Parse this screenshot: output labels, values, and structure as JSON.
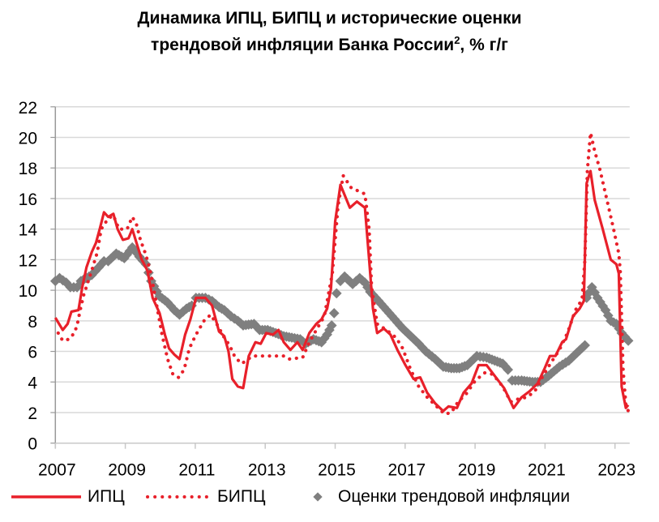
{
  "chart_data": {
    "type": "line",
    "title_line1": "Динамика ИПЦ, БИПЦ и исторические оценки",
    "title_line2": "трендовой инфляции Банка России",
    "title_sup": "2",
    "title_suffix": ", % г/г",
    "xlabel": "",
    "ylabel": "",
    "xlim": [
      2007,
      2023.42
    ],
    "ylim": [
      0,
      22
    ],
    "y_ticks": [
      "0",
      "2",
      "4",
      "6",
      "8",
      "10",
      "12",
      "14",
      "16",
      "18",
      "20",
      "22"
    ],
    "x_ticks": [
      "2007",
      "2009",
      "2011",
      "2013",
      "2015",
      "2017",
      "2019",
      "2021",
      "2023"
    ],
    "grid": "horizontal",
    "legend_placement": "bottom",
    "colors": {
      "cpi": "#e8202a",
      "core": "#e8202a",
      "trend": "#7f7f7f",
      "grid": "#d9d9d9"
    },
    "series": [
      {
        "name": "ИПЦ",
        "style": "solid",
        "points": [
          [
            2007.0,
            8.2
          ],
          [
            2007.21,
            7.4
          ],
          [
            2007.35,
            7.8
          ],
          [
            2007.46,
            8.6
          ],
          [
            2007.66,
            8.7
          ],
          [
            2007.77,
            10.2
          ],
          [
            2007.89,
            11.5
          ],
          [
            2008.04,
            12.5
          ],
          [
            2008.16,
            13.1
          ],
          [
            2008.28,
            14.1
          ],
          [
            2008.39,
            15.1
          ],
          [
            2008.51,
            14.8
          ],
          [
            2008.66,
            15.0
          ],
          [
            2008.78,
            14.0
          ],
          [
            2008.93,
            13.3
          ],
          [
            2009.09,
            13.4
          ],
          [
            2009.2,
            14.0
          ],
          [
            2009.32,
            13.1
          ],
          [
            2009.47,
            12.0
          ],
          [
            2009.63,
            11.3
          ],
          [
            2009.78,
            9.5
          ],
          [
            2009.98,
            8.5
          ],
          [
            2010.13,
            7.1
          ],
          [
            2010.25,
            6.2
          ],
          [
            2010.4,
            5.8
          ],
          [
            2010.55,
            5.5
          ],
          [
            2010.71,
            7.1
          ],
          [
            2010.86,
            8.1
          ],
          [
            2011.02,
            9.5
          ],
          [
            2011.29,
            9.5
          ],
          [
            2011.48,
            9.0
          ],
          [
            2011.68,
            7.3
          ],
          [
            2011.83,
            7.0
          ],
          [
            2011.95,
            6.0
          ],
          [
            2012.06,
            4.2
          ],
          [
            2012.22,
            3.7
          ],
          [
            2012.37,
            3.6
          ],
          [
            2012.53,
            5.7
          ],
          [
            2012.72,
            6.6
          ],
          [
            2012.87,
            6.5
          ],
          [
            2013.03,
            7.2
          ],
          [
            2013.22,
            7.1
          ],
          [
            2013.38,
            7.4
          ],
          [
            2013.53,
            6.6
          ],
          [
            2013.72,
            6.1
          ],
          [
            2013.92,
            6.6
          ],
          [
            2014.07,
            6.1
          ],
          [
            2014.26,
            7.2
          ],
          [
            2014.46,
            7.8
          ],
          [
            2014.61,
            8.1
          ],
          [
            2014.77,
            8.8
          ],
          [
            2014.88,
            10.1
          ],
          [
            2015.0,
            14.5
          ],
          [
            2015.15,
            16.9
          ],
          [
            2015.42,
            15.4
          ],
          [
            2015.62,
            15.8
          ],
          [
            2015.85,
            15.4
          ],
          [
            2015.97,
            12.0
          ],
          [
            2016.08,
            8.8
          ],
          [
            2016.2,
            7.2
          ],
          [
            2016.39,
            7.5
          ],
          [
            2016.58,
            7.1
          ],
          [
            2016.78,
            6.1
          ],
          [
            2017.01,
            5.1
          ],
          [
            2017.24,
            4.2
          ],
          [
            2017.43,
            4.3
          ],
          [
            2017.63,
            3.3
          ],
          [
            2017.86,
            2.6
          ],
          [
            2018.09,
            2.1
          ],
          [
            2018.24,
            2.4
          ],
          [
            2018.48,
            2.3
          ],
          [
            2018.67,
            3.3
          ],
          [
            2018.9,
            3.9
          ],
          [
            2019.1,
            5.1
          ],
          [
            2019.33,
            5.1
          ],
          [
            2019.56,
            4.4
          ],
          [
            2019.83,
            3.6
          ],
          [
            2020.1,
            2.3
          ],
          [
            2020.33,
            3.0
          ],
          [
            2020.56,
            3.4
          ],
          [
            2020.79,
            3.9
          ],
          [
            2020.99,
            4.9
          ],
          [
            2021.14,
            5.7
          ],
          [
            2021.3,
            5.7
          ],
          [
            2021.49,
            6.6
          ],
          [
            2021.6,
            6.8
          ],
          [
            2021.8,
            8.3
          ],
          [
            2021.99,
            8.8
          ],
          [
            2022.11,
            9.3
          ],
          [
            2022.19,
            17.0
          ],
          [
            2022.3,
            17.8
          ],
          [
            2022.42,
            15.9
          ],
          [
            2022.65,
            14.0
          ],
          [
            2022.88,
            12.0
          ],
          [
            2023.04,
            11.7
          ],
          [
            2023.11,
            11.1
          ],
          [
            2023.19,
            3.7
          ],
          [
            2023.31,
            2.3
          ],
          [
            2023.38,
            2.5
          ]
        ]
      },
      {
        "name": "БИПЦ",
        "style": "dotted",
        "points": [
          [
            2007.08,
            7.2
          ],
          [
            2007.21,
            6.7
          ],
          [
            2007.39,
            6.8
          ],
          [
            2007.54,
            7.2
          ],
          [
            2007.62,
            7.7
          ],
          [
            2007.71,
            8.7
          ],
          [
            2007.81,
            9.7
          ],
          [
            2008.04,
            11.3
          ],
          [
            2008.2,
            12.5
          ],
          [
            2008.31,
            14.0
          ],
          [
            2008.51,
            14.7
          ],
          [
            2008.66,
            14.9
          ],
          [
            2008.82,
            14.0
          ],
          [
            2009.05,
            14.0
          ],
          [
            2009.2,
            14.8
          ],
          [
            2009.32,
            14.3
          ],
          [
            2009.43,
            13.3
          ],
          [
            2009.59,
            12.3
          ],
          [
            2009.74,
            11.0
          ],
          [
            2009.9,
            9.0
          ],
          [
            2010.05,
            7.1
          ],
          [
            2010.21,
            5.5
          ],
          [
            2010.36,
            4.5
          ],
          [
            2010.52,
            4.3
          ],
          [
            2010.68,
            4.8
          ],
          [
            2010.83,
            6.2
          ],
          [
            2011.02,
            7.1
          ],
          [
            2011.25,
            8.0
          ],
          [
            2011.44,
            8.4
          ],
          [
            2011.64,
            7.7
          ],
          [
            2011.83,
            6.9
          ],
          [
            2011.98,
            6.4
          ],
          [
            2012.14,
            5.6
          ],
          [
            2012.33,
            5.2
          ],
          [
            2012.64,
            5.7
          ],
          [
            2013.14,
            5.7
          ],
          [
            2013.53,
            5.7
          ],
          [
            2013.68,
            5.5
          ],
          [
            2014.07,
            5.6
          ],
          [
            2014.26,
            6.6
          ],
          [
            2014.46,
            7.4
          ],
          [
            2014.69,
            8.3
          ],
          [
            2014.92,
            11.1
          ],
          [
            2015.08,
            15.5
          ],
          [
            2015.23,
            17.5
          ],
          [
            2015.46,
            16.7
          ],
          [
            2015.85,
            16.3
          ],
          [
            2015.97,
            14.0
          ],
          [
            2016.04,
            10.2
          ],
          [
            2016.2,
            7.8
          ],
          [
            2016.47,
            7.4
          ],
          [
            2016.74,
            6.9
          ],
          [
            2016.93,
            6.2
          ],
          [
            2017.16,
            4.8
          ],
          [
            2017.39,
            3.7
          ],
          [
            2017.63,
            3.0
          ],
          [
            2017.9,
            2.4
          ],
          [
            2018.13,
            1.9
          ],
          [
            2018.32,
            2.0
          ],
          [
            2018.51,
            2.7
          ],
          [
            2018.74,
            3.2
          ],
          [
            2019.01,
            4.1
          ],
          [
            2019.28,
            4.6
          ],
          [
            2019.51,
            4.5
          ],
          [
            2019.79,
            3.7
          ],
          [
            2020.02,
            2.7
          ],
          [
            2020.25,
            2.9
          ],
          [
            2020.48,
            3.0
          ],
          [
            2020.71,
            3.4
          ],
          [
            2020.94,
            4.4
          ],
          [
            2021.18,
            5.3
          ],
          [
            2021.41,
            6.1
          ],
          [
            2021.64,
            7.2
          ],
          [
            2021.87,
            8.7
          ],
          [
            2022.06,
            9.4
          ],
          [
            2022.14,
            12.0
          ],
          [
            2022.21,
            17.8
          ],
          [
            2022.3,
            20.3
          ],
          [
            2022.42,
            19.1
          ],
          [
            2022.57,
            17.9
          ],
          [
            2022.77,
            15.9
          ],
          [
            2022.96,
            14.0
          ],
          [
            2023.11,
            12.4
          ],
          [
            2023.15,
            11.3
          ],
          [
            2023.23,
            4.9
          ],
          [
            2023.31,
            2.5
          ],
          [
            2023.38,
            2.1
          ]
        ]
      },
      {
        "name": "Оценки трендовой инфляции",
        "style": "diamond",
        "segments": [
          [
            [
              2007.0,
              10.6
            ],
            [
              2007.12,
              10.8
            ],
            [
              2007.31,
              10.5
            ],
            [
              2007.43,
              10.2
            ],
            [
              2007.62,
              10.2
            ],
            [
              2007.73,
              10.6
            ],
            [
              2007.89,
              10.8
            ],
            [
              2008.04,
              11.0
            ],
            [
              2008.24,
              11.5
            ],
            [
              2008.39,
              11.9
            ],
            [
              2008.51,
              11.9
            ],
            [
              2008.74,
              12.4
            ],
            [
              2008.97,
              12.1
            ],
            [
              2009.2,
              12.8
            ],
            [
              2009.4,
              12.2
            ],
            [
              2009.59,
              11.7
            ],
            [
              2009.74,
              10.6
            ],
            [
              2009.98,
              9.6
            ],
            [
              2010.21,
              9.2
            ],
            [
              2010.4,
              8.7
            ],
            [
              2010.55,
              8.4
            ],
            [
              2010.75,
              8.8
            ],
            [
              2010.9,
              9.0
            ],
            [
              2011.02,
              9.5
            ],
            [
              2011.29,
              9.5
            ],
            [
              2011.48,
              9.3
            ],
            [
              2011.68,
              8.9
            ],
            [
              2011.83,
              8.7
            ],
            [
              2012.02,
              8.3
            ],
            [
              2012.22,
              8.0
            ],
            [
              2012.37,
              7.7
            ],
            [
              2012.68,
              7.8
            ],
            [
              2012.84,
              7.4
            ],
            [
              2013.07,
              7.4
            ],
            [
              2013.3,
              7.2
            ],
            [
              2013.53,
              7.0
            ],
            [
              2013.76,
              6.9
            ],
            [
              2014.0,
              6.8
            ],
            [
              2014.15,
              6.5
            ],
            [
              2014.38,
              6.8
            ],
            [
              2014.61,
              6.6
            ],
            [
              2014.77,
              7.1
            ],
            [
              2014.9,
              7.7
            ],
            [
              2014.97,
              8.5
            ],
            [
              2015.04,
              9.8
            ],
            [
              2015.15,
              10.6
            ],
            [
              2015.27,
              10.9
            ],
            [
              2015.5,
              10.4
            ],
            [
              2015.7,
              10.8
            ],
            [
              2015.85,
              10.5
            ],
            [
              2016.0,
              9.9
            ],
            [
              2016.24,
              9.3
            ],
            [
              2016.47,
              8.7
            ],
            [
              2016.7,
              8.1
            ],
            [
              2016.93,
              7.5
            ],
            [
              2017.16,
              7.0
            ],
            [
              2017.39,
              6.5
            ],
            [
              2017.59,
              6.0
            ],
            [
              2017.86,
              5.5
            ],
            [
              2018.09,
              5.0
            ],
            [
              2018.32,
              4.9
            ],
            [
              2018.55,
              4.9
            ],
            [
              2018.78,
              5.1
            ],
            [
              2019.05,
              5.7
            ],
            [
              2019.33,
              5.6
            ],
            [
              2019.56,
              5.4
            ],
            [
              2019.79,
              5.2
            ],
            [
              2019.94,
              4.8
            ],
            [
              2020.06,
              4.1
            ],
            [
              2020.33,
              4.1
            ],
            [
              2020.64,
              4.0
            ],
            [
              2020.87,
              4.0
            ],
            [
              2021.1,
              4.4
            ],
            [
              2021.41,
              5.0
            ],
            [
              2021.68,
              5.4
            ],
            [
              2021.91,
              5.9
            ],
            [
              2022.14,
              6.4
            ]
          ],
          [
            [
              2022.19,
              9.5
            ],
            [
              2022.34,
              10.2
            ],
            [
              2022.5,
              9.5
            ],
            [
              2022.73,
              8.7
            ],
            [
              2022.88,
              8.0
            ],
            [
              2023.04,
              7.8
            ],
            [
              2023.19,
              7.2
            ],
            [
              2023.38,
              6.7
            ]
          ]
        ]
      }
    ]
  },
  "legend": {
    "cpi": "ИПЦ",
    "core": "БИПЦ",
    "trend": "Оценки трендовой инфляции"
  }
}
